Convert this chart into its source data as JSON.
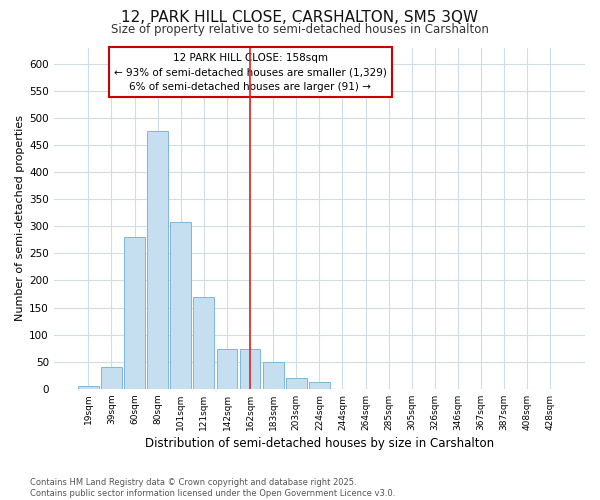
{
  "title_line1": "12, PARK HILL CLOSE, CARSHALTON, SM5 3QW",
  "title_line2": "Size of property relative to semi-detached houses in Carshalton",
  "xlabel": "Distribution of semi-detached houses by size in Carshalton",
  "ylabel": "Number of semi-detached properties",
  "categories": [
    "19sqm",
    "39sqm",
    "60sqm",
    "80sqm",
    "101sqm",
    "121sqm",
    "142sqm",
    "162sqm",
    "183sqm",
    "203sqm",
    "224sqm",
    "244sqm",
    "264sqm",
    "285sqm",
    "305sqm",
    "326sqm",
    "346sqm",
    "367sqm",
    "387sqm",
    "408sqm",
    "428sqm"
  ],
  "values": [
    5,
    41,
    280,
    475,
    307,
    170,
    73,
    73,
    50,
    20,
    12,
    0,
    0,
    0,
    0,
    0,
    0,
    0,
    0,
    0,
    0
  ],
  "bar_color": "#c5dff0",
  "bar_edge_color": "#7db8d8",
  "fig_bg_color": "#ffffff",
  "plot_bg_color": "#ffffff",
  "grid_color": "#d0dce8",
  "vline_x_idx": 7,
  "vline_color": "#dd2222",
  "annotation_title": "12 PARK HILL CLOSE: 158sqm",
  "annotation_line1": "← 93% of semi-detached houses are smaller (1,329)",
  "annotation_line2": "6% of semi-detached houses are larger (91) →",
  "annotation_box_facecolor": "#ffffff",
  "annotation_box_edgecolor": "#cc0000",
  "footer_line1": "Contains HM Land Registry data © Crown copyright and database right 2025.",
  "footer_line2": "Contains public sector information licensed under the Open Government Licence v3.0.",
  "ylim": [
    0,
    630
  ],
  "yticks": [
    0,
    50,
    100,
    150,
    200,
    250,
    300,
    350,
    400,
    450,
    500,
    550,
    600
  ]
}
